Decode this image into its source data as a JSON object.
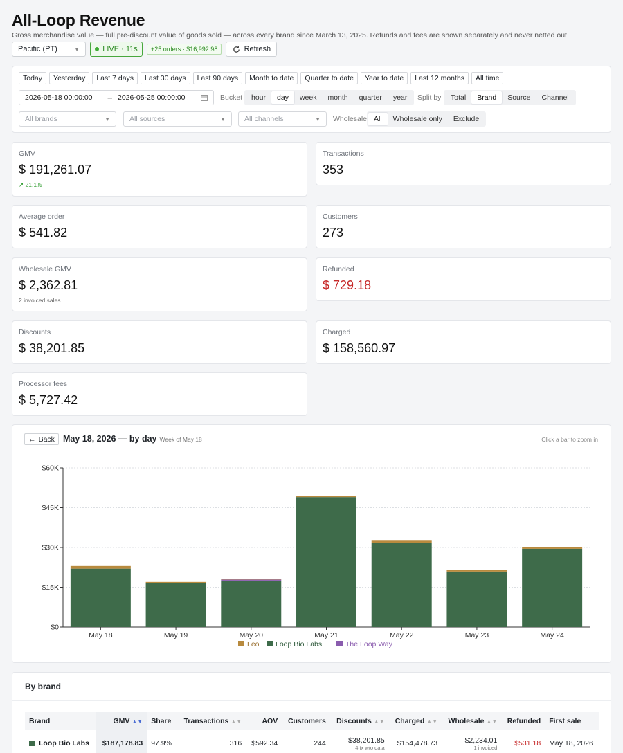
{
  "page": {
    "title": "All-Loop Revenue",
    "subtitle": "Gross merchandise value — full pre-discount value of goods sold — across every brand since March 13, 2025. Refunds and fees are shown separately and never netted out."
  },
  "controls": {
    "timezone": "Pacific (PT)",
    "live_label": "LIVE · 11s",
    "new_orders": "+25 orders · $16,992.98",
    "refresh_label": "Refresh"
  },
  "filters": {
    "presets": [
      "Today",
      "Yesterday",
      "Last 7 days",
      "Last 30 days",
      "Last 90 days",
      "Month to date",
      "Quarter to date",
      "Year to date",
      "Last 12 months",
      "All time"
    ],
    "date_from": "2026-05-18 00:00:00",
    "date_arrow": "→",
    "date_to": "2026-05-25 00:00:00",
    "bucket_label": "Bucket",
    "bucket_options": [
      "hour",
      "day",
      "week",
      "month",
      "quarter",
      "year"
    ],
    "bucket_selected": "day",
    "split_label": "Split by",
    "split_options": [
      "Total",
      "Brand",
      "Source",
      "Channel"
    ],
    "split_selected": "Brand",
    "brands_placeholder": "All brands",
    "sources_placeholder": "All sources",
    "channels_placeholder": "All channels",
    "wholesale_label": "Wholesale",
    "wholesale_options": [
      "All",
      "Wholesale only",
      "Exclude"
    ],
    "wholesale_selected": "All"
  },
  "stats": {
    "gmv": {
      "label": "GMV",
      "currency": "$",
      "value": "191,261.07",
      "note": "21.1%"
    },
    "transactions": {
      "label": "Transactions",
      "value": "353"
    },
    "avg_order": {
      "label": "Average order",
      "currency": "$",
      "value": "541.82"
    },
    "customers": {
      "label": "Customers",
      "value": "273"
    },
    "wholesale_gmv": {
      "label": "Wholesale GMV",
      "currency": "$",
      "value": "2,362.81",
      "note": "2 invoiced sales"
    },
    "refunded": {
      "label": "Refunded",
      "currency": "$",
      "value": "729.18"
    },
    "discounts": {
      "label": "Discounts",
      "currency": "$",
      "value": "38,201.85"
    },
    "charged": {
      "label": "Charged",
      "currency": "$",
      "value": "158,560.97"
    },
    "processor_fees": {
      "label": "Processor fees",
      "currency": "$",
      "value": "5,727.42"
    }
  },
  "chart_header": {
    "back_label": "Back",
    "title": "May 18, 2026 — by day",
    "subtitle": "Week of May 18",
    "hint": "Click a bar to zoom in"
  },
  "chart_data": {
    "type": "bar",
    "stacked": true,
    "categories": [
      "May 18",
      "May 19",
      "May 20",
      "May 21",
      "May 22",
      "May 23",
      "May 24"
    ],
    "series": [
      {
        "name": "Loop Bio Labs",
        "color": "#3e6b4a",
        "values": [
          22000,
          16500,
          17500,
          49000,
          31800,
          20900,
          29500
        ]
      },
      {
        "name": "Leo",
        "color": "#b88a3e",
        "values": [
          1000,
          500,
          300,
          500,
          1000,
          700,
          500
        ]
      },
      {
        "name": "The Loop Way",
        "color": "#8a5cae",
        "values": [
          0,
          0,
          400,
          0,
          0,
          0,
          0
        ]
      }
    ],
    "legend_order": [
      "Leo",
      "Loop Bio Labs",
      "The Loop Way"
    ],
    "ylim": [
      0,
      60000
    ],
    "yticks": [
      0,
      15000,
      30000,
      45000,
      60000
    ],
    "ytick_labels": [
      "$0",
      "$15K",
      "$30K",
      "$45K",
      "$60K"
    ],
    "grid": true,
    "legend_position": "bottom"
  },
  "brand_table": {
    "title": "By brand",
    "columns": [
      "Brand",
      "GMV",
      "Share",
      "Transactions",
      "AOV",
      "Customers",
      "Discounts",
      "Charged",
      "Wholesale",
      "Refunded",
      "First sale"
    ],
    "rows": [
      {
        "brand": "Loop Bio Labs",
        "color": "#3e6b4a",
        "gmv": "$187,178.83",
        "share": "97.9%",
        "transactions": "316",
        "aov": "$592.34",
        "customers": "244",
        "discounts": "$38,201.85",
        "discounts_note": "4 tx w/o data",
        "charged": "$154,478.73",
        "wholesale": "$2,234.01",
        "wholesale_note": "1 invoiced",
        "refunded": "$531.18",
        "first_sale": "May 18, 2026"
      }
    ]
  }
}
